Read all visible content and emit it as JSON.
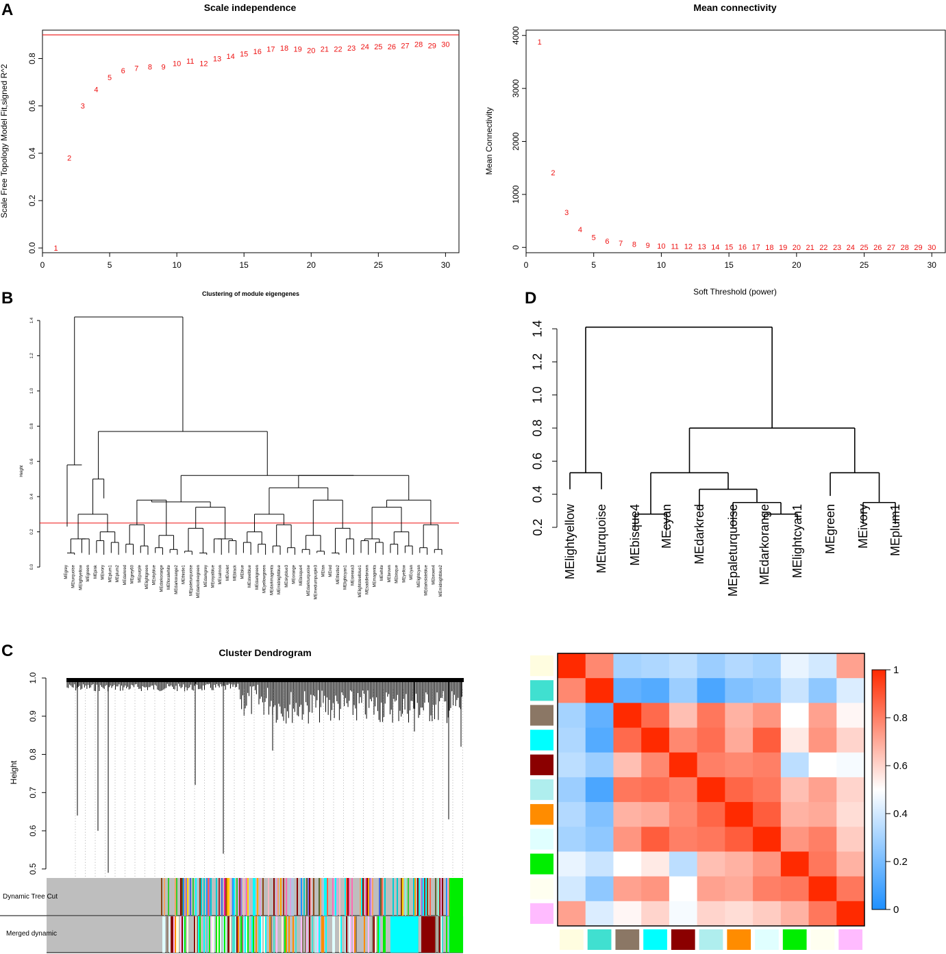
{
  "panel_letters": {
    "a": "A",
    "b": "B",
    "c": "C",
    "d": "D"
  },
  "chart_data": [
    {
      "type": "scatter",
      "title": "Scale independence",
      "xlabel": "",
      "ylabel": "Scale Free Topology Model Fit,signed R^2",
      "xlim": [
        0,
        31
      ],
      "ylim": [
        -0.02,
        0.92
      ],
      "xticks": [
        "0",
        "5",
        "10",
        "15",
        "20",
        "25",
        "30"
      ],
      "yticks": [
        "0.0",
        "0.2",
        "0.4",
        "0.6",
        "0.8"
      ],
      "marker_labels": [
        "1",
        "2",
        "3",
        "4",
        "5",
        "6",
        "7",
        "8",
        "9",
        "10",
        "11",
        "12",
        "13",
        "14",
        "15",
        "16",
        "17",
        "18",
        "19",
        "20",
        "21",
        "22",
        "23",
        "24",
        "25",
        "26",
        "27",
        "28",
        "29",
        "30"
      ],
      "x": [
        1,
        2,
        3,
        4,
        5,
        6,
        7,
        8,
        9,
        10,
        11,
        12,
        13,
        14,
        15,
        16,
        17,
        18,
        19,
        20,
        21,
        22,
        23,
        24,
        25,
        26,
        27,
        28,
        29,
        30
      ],
      "y": [
        0.0,
        0.38,
        0.6,
        0.67,
        0.72,
        0.75,
        0.76,
        0.765,
        0.765,
        0.78,
        0.79,
        0.78,
        0.8,
        0.81,
        0.82,
        0.83,
        0.84,
        0.845,
        0.84,
        0.835,
        0.84,
        0.84,
        0.845,
        0.85,
        0.85,
        0.85,
        0.855,
        0.86,
        0.855,
        0.86
      ],
      "hline": 0.9
    },
    {
      "type": "scatter",
      "title": "Mean connectivity",
      "xlabel": "Soft Threshold (power)",
      "ylabel": "Mean Connectivity",
      "xlim": [
        0,
        31
      ],
      "ylim": [
        -100,
        4100
      ],
      "xticks": [
        "0",
        "5",
        "10",
        "15",
        "20",
        "25",
        "30"
      ],
      "yticks": [
        "0",
        "1000",
        "2000",
        "3000",
        "4000"
      ],
      "marker_labels": [
        "1",
        "2",
        "3",
        "4",
        "5",
        "6",
        "7",
        "8",
        "9",
        "10",
        "11",
        "12",
        "13",
        "14",
        "15",
        "16",
        "17",
        "18",
        "19",
        "20",
        "21",
        "22",
        "23",
        "24",
        "25",
        "26",
        "27",
        "28",
        "29",
        "30"
      ],
      "x": [
        1,
        2,
        3,
        4,
        5,
        6,
        7,
        8,
        9,
        10,
        11,
        12,
        13,
        14,
        15,
        16,
        17,
        18,
        19,
        20,
        21,
        22,
        23,
        24,
        25,
        26,
        27,
        28,
        29,
        30
      ],
      "y": [
        3880,
        1410,
        660,
        340,
        190,
        120,
        80,
        60,
        40,
        30,
        25,
        20,
        15,
        12,
        10,
        8,
        7,
        6,
        5,
        5,
        4,
        4,
        3,
        3,
        2,
        2,
        2,
        2,
        1,
        1
      ]
    },
    {
      "type": "dendrogram",
      "title": "Clustering of module eigengenes",
      "ylabel": "Height",
      "yticks": [
        "0.0",
        "0.2",
        "0.4",
        "0.6",
        "0.8",
        "1.0",
        "1.2",
        "1.4"
      ],
      "cut_height": 0.25,
      "leaves": [
        "MEgrey",
        "MEturquoise",
        "MElightyellow",
        "MEgreen",
        "MEpink",
        "MEivory",
        "MEplum1",
        "MEplum2",
        "MEdarkred",
        "MEgrey60",
        "MEpurple",
        "MElightgreen",
        "MEskyblue",
        "MEdarkorange",
        "MEfloralwhite",
        "MEdarkorange2",
        "MEthistle1",
        "MEpaleturquoise",
        "MEdarkolivegreen",
        "MEdarkgrey",
        "MEroyalblue",
        "MEsalmon",
        "MEviolet",
        "MEblack",
        "MEblue",
        "MEsteelblue",
        "MEdarkgreen",
        "MEyellowgreen",
        "MEdarkmagenta",
        "MEmidnightblue",
        "MEskyblue3",
        "MEorange",
        "MEbisque4",
        "MEdarkturquoise",
        "MEmediumpurple3",
        "MEtan",
        "MEred",
        "MEthistle2",
        "MElightcyan1",
        "MEsienna3",
        "MElightsteelblue1",
        "MEsaddlebrown",
        "MEmagenta",
        "MEwhite",
        "MEbrown",
        "MEbisque",
        "MEyellow",
        "MEcyan",
        "MElightcyan",
        "MEdarkslateblue",
        "MEbrown4",
        "MEmidnightblue2"
      ]
    },
    {
      "type": "dendrogram",
      "title": "Cluster Dendrogram",
      "ylabel": "Height",
      "yticks": [
        "0.5",
        "0.6",
        "0.7",
        "0.8",
        "0.9",
        "1.0"
      ],
      "ylim": [
        0.48,
        1.0
      ],
      "color_rows": [
        "Dynamic Tree Cut",
        "Merged dynamic"
      ]
    },
    {
      "type": "dendrogram",
      "title": "",
      "ylabel": "",
      "yticks": [
        "0.2",
        "0.4",
        "0.6",
        "0.8",
        "1.0",
        "1.2",
        "1.4"
      ],
      "ylim": [
        0.2,
        1.45
      ],
      "leaves": [
        "MElightyellow",
        "MEturquoise",
        "MEbisque4",
        "MEcyan",
        "MEdarkred",
        "MEpaleturquoise",
        "MEdarkorange",
        "MElightcyan1",
        "MEgreen",
        "MEivory",
        "MEplum1"
      ]
    },
    {
      "type": "heatmap",
      "title": "",
      "modules": [
        "lightyellow",
        "turquoise",
        "bisque4",
        "cyan",
        "darkred",
        "paleturquoise",
        "darkorange",
        "lightcyan1",
        "green",
        "ivory",
        "plum1"
      ],
      "module_colors": [
        "#fffde0",
        "#40e0d0",
        "#8b7765",
        "#00ffff",
        "#8b0000",
        "#afeeee",
        "#ff8c00",
        "#e0ffff",
        "#00ee00",
        "#fffff0",
        "#ffbbff"
      ],
      "matrix": [
        [
          1.0,
          0.78,
          0.3,
          0.32,
          0.35,
          0.28,
          0.33,
          0.3,
          0.45,
          0.4,
          0.72
        ],
        [
          0.78,
          1.0,
          0.15,
          0.12,
          0.28,
          0.1,
          0.22,
          0.25,
          0.38,
          0.25,
          0.42
        ],
        [
          0.3,
          0.15,
          1.0,
          0.85,
          0.65,
          0.82,
          0.68,
          0.75,
          0.5,
          0.72,
          0.52
        ],
        [
          0.32,
          0.12,
          0.85,
          1.0,
          0.78,
          0.84,
          0.7,
          0.88,
          0.55,
          0.75,
          0.6
        ],
        [
          0.35,
          0.28,
          0.65,
          0.78,
          1.0,
          0.8,
          0.78,
          0.8,
          0.35,
          0.5,
          0.48
        ],
        [
          0.28,
          0.1,
          0.82,
          0.84,
          0.8,
          1.0,
          0.86,
          0.82,
          0.65,
          0.72,
          0.6
        ],
        [
          0.33,
          0.22,
          0.68,
          0.7,
          0.78,
          0.86,
          1.0,
          0.88,
          0.68,
          0.7,
          0.58
        ],
        [
          0.3,
          0.25,
          0.75,
          0.88,
          0.8,
          0.82,
          0.88,
          1.0,
          0.75,
          0.8,
          0.62
        ],
        [
          0.45,
          0.38,
          0.5,
          0.55,
          0.35,
          0.65,
          0.68,
          0.75,
          1.0,
          0.82,
          0.68
        ],
        [
          0.4,
          0.25,
          0.72,
          0.75,
          0.5,
          0.72,
          0.7,
          0.8,
          0.82,
          1.0,
          0.82
        ],
        [
          0.72,
          0.42,
          0.52,
          0.6,
          0.48,
          0.6,
          0.58,
          0.62,
          0.68,
          0.82,
          1.0
        ]
      ],
      "colorbar_ticks": [
        "1",
        "0.8",
        "0.6",
        "0.4",
        "0.2",
        "0"
      ]
    }
  ]
}
